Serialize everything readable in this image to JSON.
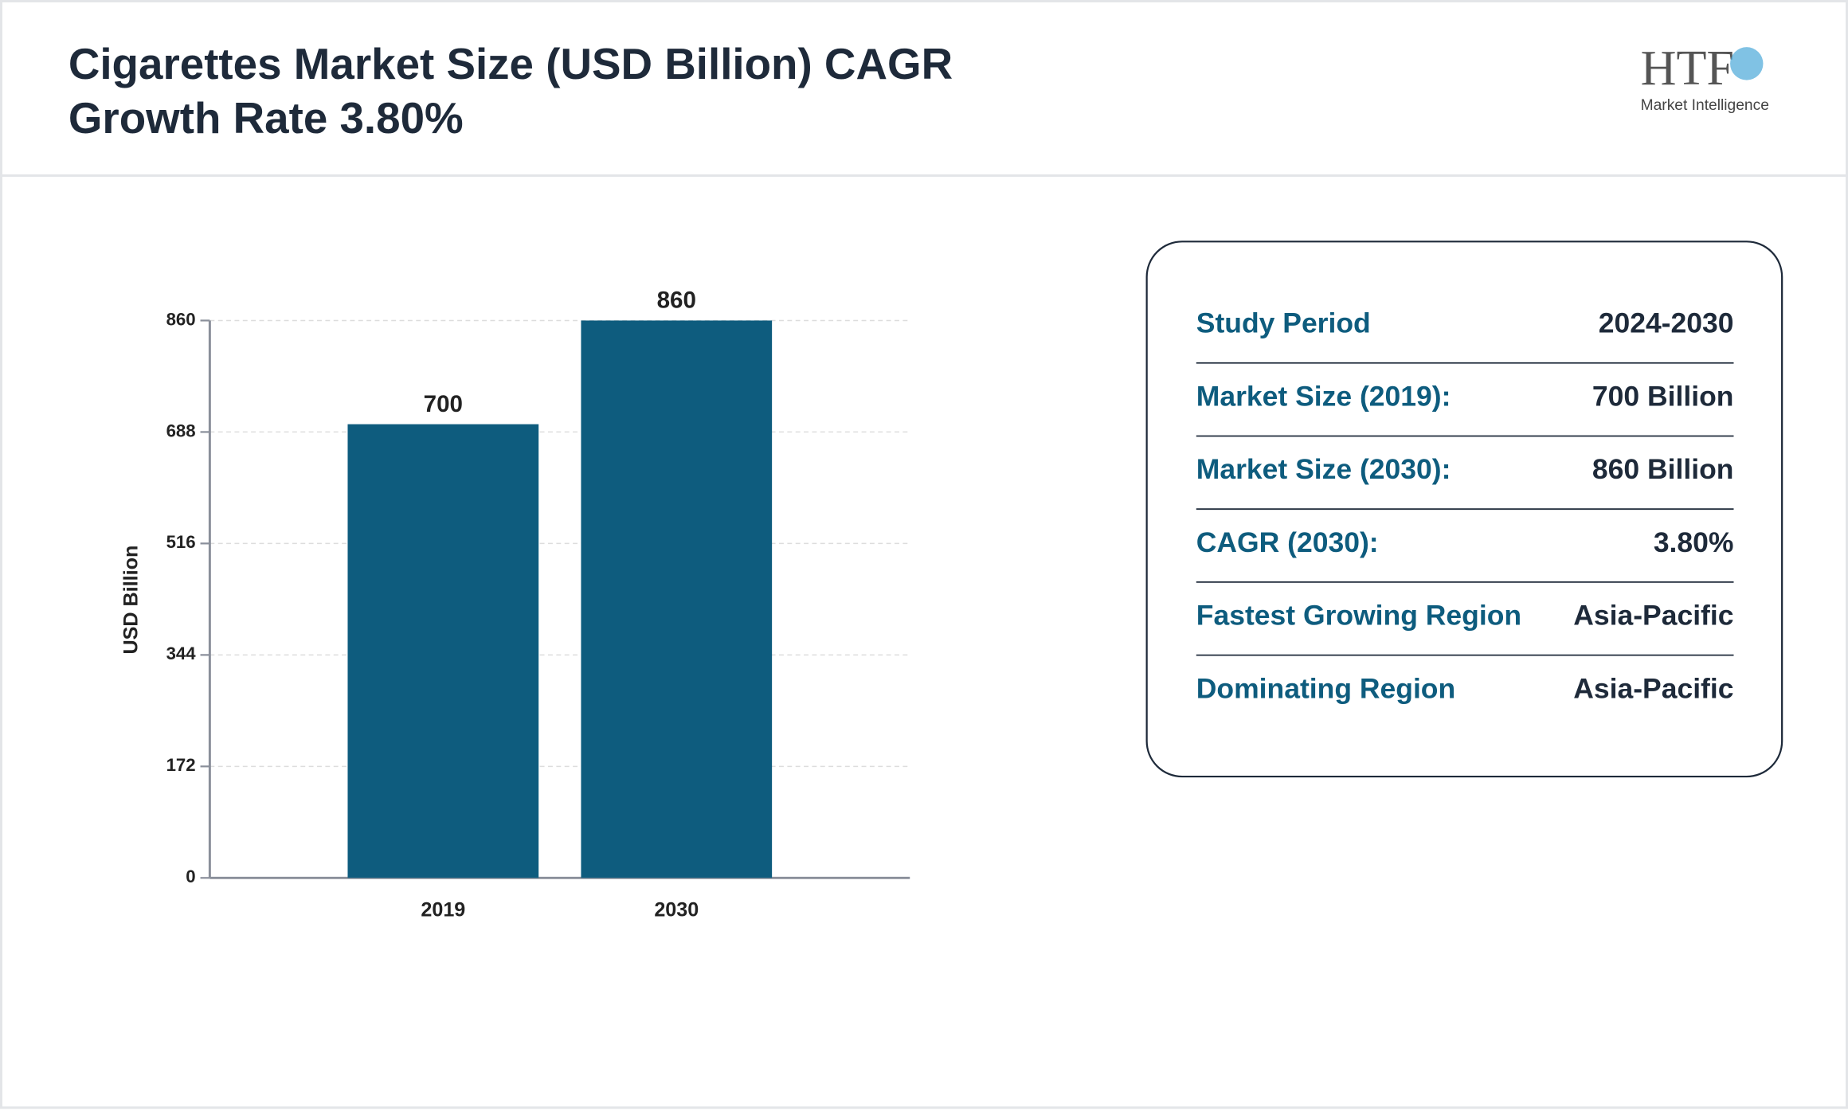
{
  "header": {
    "logo": {
      "name": "HTF",
      "tagline": "Market Intelligence"
    }
  },
  "chart_data": {
    "type": "bar",
    "title": "Cigarettes Market Size (USD Billion) CAGR Growth Rate 3.80%",
    "y_label": "USD Billion",
    "categories": [
      "2019",
      "2030"
    ],
    "values": [
      700,
      860
    ],
    "color": "#0e5c7e",
    "ylim": [
      0,
      860
    ],
    "yticks": [
      0,
      172,
      344,
      516,
      688,
      860
    ],
    "grid": true
  },
  "summary_table": {
    "rows": [
      [
        "Study Period",
        "2024-2030"
      ],
      [
        "Market Size (2019):",
        "700 Billion"
      ],
      [
        "Market Size (2030):",
        "860 Billion"
      ],
      [
        "CAGR (2030):",
        "3.80%"
      ],
      [
        "Fastest Growing Region",
        "Asia-Pacific"
      ],
      [
        "Dominating Region",
        "Asia-Pacific"
      ]
    ]
  }
}
